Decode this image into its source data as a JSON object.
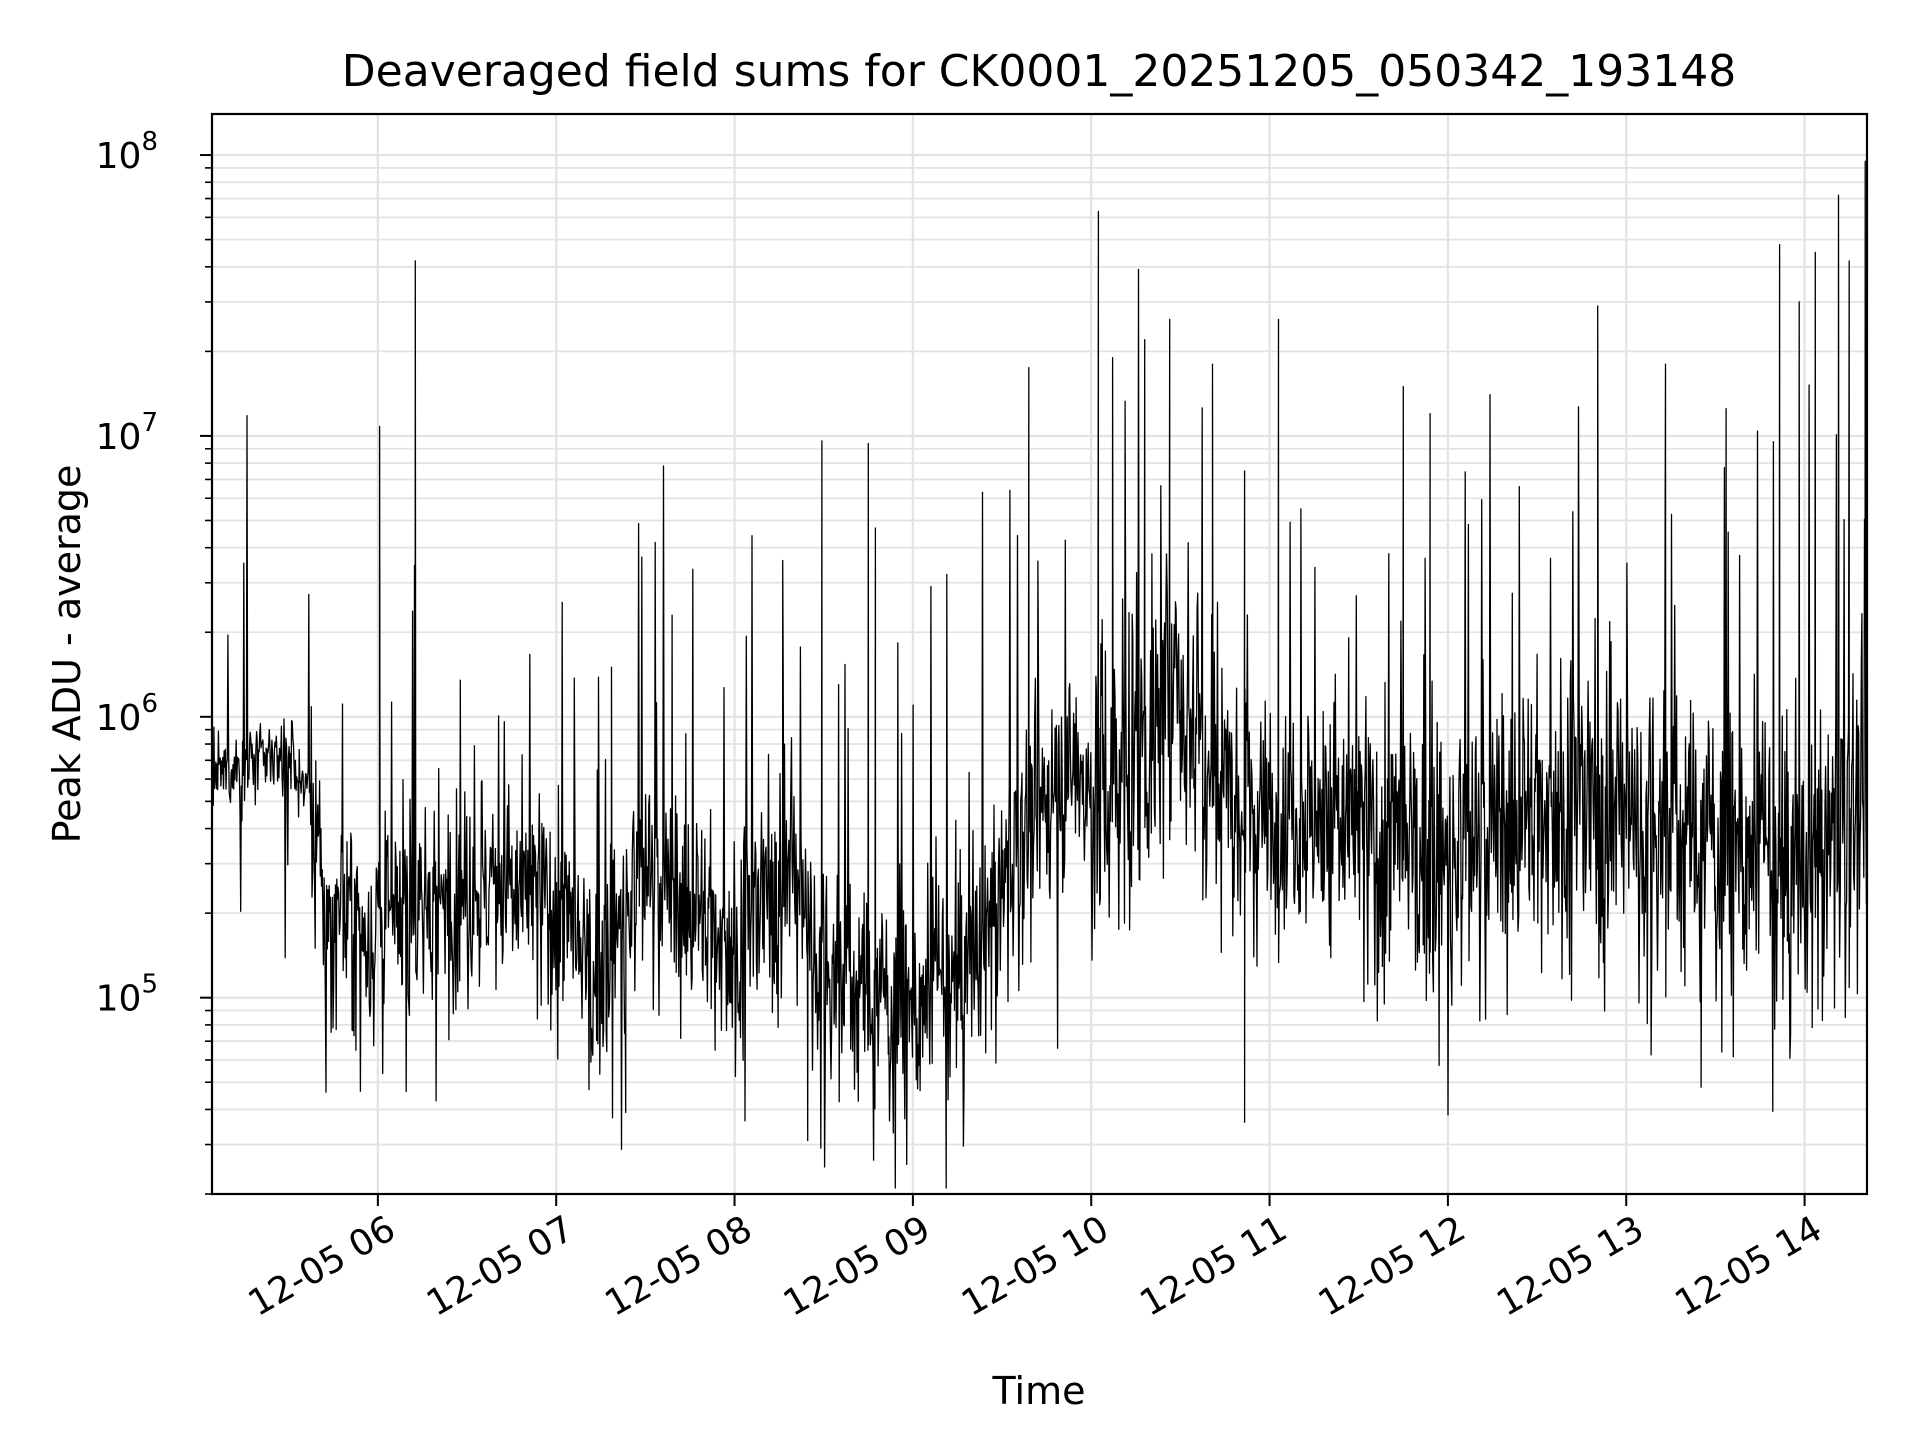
{
  "chart_data": {
    "type": "line",
    "title": "Deaveraged field sums for CK0001_20251205_050342_193148",
    "xlabel": "Time",
    "ylabel": "Peak ADU - average",
    "yscale": "log",
    "ylim": [
      20000,
      140000000
    ],
    "xlim_hours": [
      5.07,
      14.35
    ],
    "grid": true,
    "x_ticks": [
      {
        "label": "12-05 06",
        "hour": 6
      },
      {
        "label": "12-05 07",
        "hour": 7
      },
      {
        "label": "12-05 08",
        "hour": 8
      },
      {
        "label": "12-05 09",
        "hour": 9
      },
      {
        "label": "12-05 10",
        "hour": 10
      },
      {
        "label": "12-05 11",
        "hour": 11
      },
      {
        "label": "12-05 12",
        "hour": 12
      },
      {
        "label": "12-05 13",
        "hour": 13
      },
      {
        "label": "12-05 14",
        "hour": 14
      }
    ],
    "y_ticks": [
      {
        "base": "10",
        "exp": "5",
        "value": 100000
      },
      {
        "base": "10",
        "exp": "6",
        "value": 1000000
      },
      {
        "base": "10",
        "exp": "7",
        "value": 10000000
      },
      {
        "base": "10",
        "exp": "8",
        "value": 100000000
      }
    ],
    "series": [
      {
        "name": "Peak ADU - average",
        "color": "#000000",
        "baseline_hours": [
          5.07,
          5.3,
          5.5,
          5.62,
          5.7,
          6.0,
          6.5,
          7.0,
          7.2,
          7.5,
          7.8,
          8.0,
          8.3,
          8.5,
          8.8,
          9.0,
          9.3,
          9.6,
          9.9,
          10.0,
          10.3,
          10.5,
          10.8,
          11.0,
          11.3,
          11.6,
          12.0,
          12.3,
          12.6,
          13.0,
          13.3,
          13.6,
          13.9,
          14.2,
          14.35
        ],
        "baseline_values": [
          600000,
          700000,
          750000,
          500000,
          200000,
          170000,
          250000,
          220000,
          110000,
          280000,
          200000,
          150000,
          300000,
          130000,
          100000,
          90000,
          120000,
          350000,
          700000,
          500000,
          800000,
          1200000,
          600000,
          450000,
          450000,
          350000,
          300000,
          400000,
          500000,
          450000,
          400000,
          350000,
          250000,
          400000,
          500000
        ],
        "spikes": [
          {
            "hour": 6.01,
            "value": 10800000
          },
          {
            "hour": 6.21,
            "value": 42000000
          },
          {
            "hour": 7.31,
            "value": 1500000
          },
          {
            "hour": 7.65,
            "value": 2300000
          },
          {
            "hour": 8.27,
            "value": 3600000
          },
          {
            "hour": 8.49,
            "value": 9600000
          },
          {
            "hour": 8.75,
            "value": 9400000
          },
          {
            "hour": 8.79,
            "value": 4700000
          },
          {
            "hour": 9.65,
            "value": 17500000
          },
          {
            "hour": 10.04,
            "value": 63000000
          },
          {
            "hour": 10.12,
            "value": 19000000
          },
          {
            "hour": 10.3,
            "value": 22000000
          },
          {
            "hour": 10.44,
            "value": 26000000
          },
          {
            "hour": 10.68,
            "value": 18000000
          },
          {
            "hour": 10.86,
            "value": 7500000
          },
          {
            "hour": 11.05,
            "value": 26000000
          },
          {
            "hour": 11.75,
            "value": 15000000
          },
          {
            "hour": 11.9,
            "value": 12000000
          },
          {
            "hour": 12.84,
            "value": 29000000
          },
          {
            "hour": 13.22,
            "value": 18000000
          },
          {
            "hour": 13.56,
            "value": 12500000
          },
          {
            "hour": 13.86,
            "value": 48000000
          },
          {
            "hour": 13.97,
            "value": 30000000
          },
          {
            "hour": 14.06,
            "value": 45000000
          },
          {
            "hour": 14.19,
            "value": 72000000
          },
          {
            "hour": 14.25,
            "value": 42000000
          },
          {
            "hour": 14.34,
            "value": 95000000
          }
        ],
        "dips": [
          {
            "hour": 7.39,
            "value": 39000.0
          },
          {
            "hour": 8.41,
            "value": 31000
          },
          {
            "hour": 8.89,
            "value": 33000
          },
          {
            "hour": 10.86,
            "value": 36000
          },
          {
            "hour": 13.42,
            "value": 48000
          }
        ]
      }
    ]
  }
}
